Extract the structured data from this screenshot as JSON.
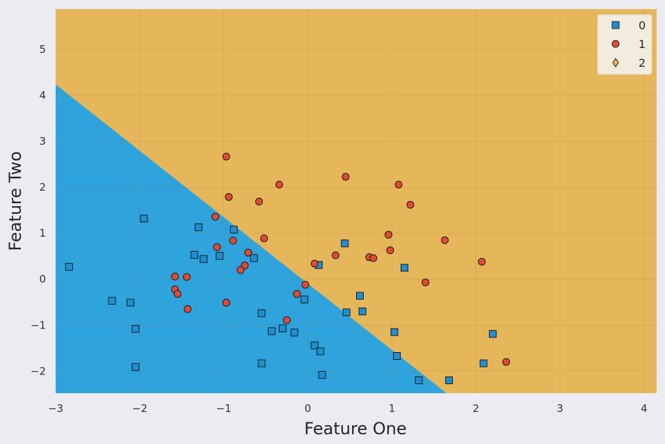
{
  "chart_data": {
    "type": "scatter",
    "title": "",
    "xlabel": "Feature One",
    "ylabel": "Feature Two",
    "xlim": [
      -3,
      4.15
    ],
    "ylim": [
      -2.48,
      5.88
    ],
    "xticks": [
      -3,
      -2,
      -1,
      0,
      1,
      2,
      3,
      4
    ],
    "yticks": [
      -2,
      -1,
      0,
      1,
      2,
      3,
      4,
      5
    ],
    "xtick_labels": [
      "−3",
      "−2",
      "−1",
      "0",
      "1",
      "2",
      "3",
      "4"
    ],
    "ytick_labels": [
      "−2",
      "−1",
      "0",
      "1",
      "2",
      "3",
      "4",
      "5"
    ],
    "grid": true,
    "legend_position": "top-right",
    "decision_regions": {
      "boundary_points": [
        [
          -3,
          4.24
        ],
        [
          1.65,
          -2.48
        ]
      ],
      "below_class": "0",
      "above_class": "1",
      "colors": {
        "0": "#2fa3dc",
        "1": "#e6b75a"
      }
    },
    "series": [
      {
        "name": "0",
        "marker": "square",
        "color": "#1f8fd1",
        "points": [
          [
            -2.84,
            0.27
          ],
          [
            -2.33,
            -0.47
          ],
          [
            -2.11,
            -0.51
          ],
          [
            -2.05,
            -1.08
          ],
          [
            -2.05,
            -1.91
          ],
          [
            -1.95,
            1.32
          ],
          [
            -1.35,
            0.53
          ],
          [
            -1.3,
            1.13
          ],
          [
            -1.24,
            0.44
          ],
          [
            -1.05,
            0.51
          ],
          [
            -0.88,
            1.08
          ],
          [
            -0.64,
            0.46
          ],
          [
            -0.55,
            -0.74
          ],
          [
            -0.55,
            -1.83
          ],
          [
            -0.43,
            -1.13
          ],
          [
            -0.3,
            -1.07
          ],
          [
            -0.16,
            -1.16
          ],
          [
            -0.04,
            -0.44
          ],
          [
            0.08,
            -1.44
          ],
          [
            0.13,
            0.31
          ],
          [
            0.15,
            -1.57
          ],
          [
            0.17,
            -2.08
          ],
          [
            0.44,
            0.78
          ],
          [
            0.46,
            -0.72
          ],
          [
            0.62,
            -0.36
          ],
          [
            0.65,
            -0.7
          ],
          [
            1.03,
            -1.15
          ],
          [
            1.06,
            -1.67
          ],
          [
            1.15,
            0.25
          ],
          [
            1.32,
            -2.2
          ],
          [
            1.68,
            -2.2
          ],
          [
            2.09,
            -1.83
          ],
          [
            2.2,
            -1.19
          ]
        ]
      },
      {
        "name": "1",
        "marker": "circle",
        "color": "#e24a33",
        "points": [
          [
            -0.97,
            2.67
          ],
          [
            -0.94,
            1.79
          ],
          [
            -0.58,
            1.69
          ],
          [
            -0.34,
            2.06
          ],
          [
            0.45,
            2.23
          ],
          [
            1.08,
            2.06
          ],
          [
            1.22,
            1.62
          ],
          [
            -1.1,
            1.36
          ],
          [
            -0.89,
            0.84
          ],
          [
            -0.52,
            0.89
          ],
          [
            -1.08,
            0.7
          ],
          [
            -0.71,
            0.58
          ],
          [
            -0.75,
            0.3
          ],
          [
            -0.8,
            0.2
          ],
          [
            -1.58,
            0.06
          ],
          [
            -1.44,
            0.05
          ],
          [
            -1.58,
            -0.22
          ],
          [
            -1.55,
            -0.32
          ],
          [
            -1.43,
            -0.65
          ],
          [
            -0.97,
            -0.51
          ],
          [
            -0.03,
            -0.12
          ],
          [
            -0.13,
            -0.32
          ],
          [
            -0.25,
            -0.89
          ],
          [
            0.08,
            0.34
          ],
          [
            0.33,
            0.52
          ],
          [
            0.73,
            0.48
          ],
          [
            0.78,
            0.46
          ],
          [
            0.96,
            0.97
          ],
          [
            0.98,
            0.63
          ],
          [
            1.4,
            -0.07
          ],
          [
            1.63,
            0.85
          ],
          [
            2.07,
            0.38
          ],
          [
            2.36,
            -1.8
          ]
        ]
      },
      {
        "name": "2",
        "marker": "diamond",
        "color": "#e6b75a",
        "points": []
      }
    ]
  }
}
